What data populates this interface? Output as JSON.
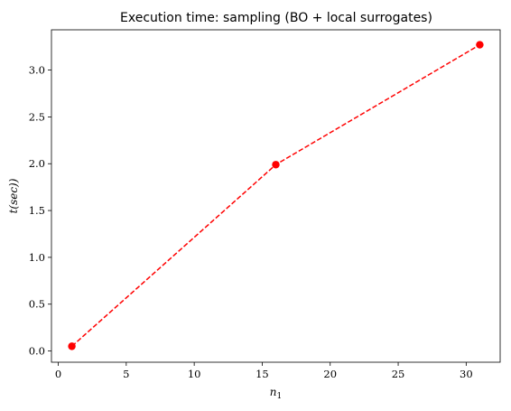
{
  "chart_data": {
    "type": "line",
    "title": "Execution time: sampling (BO + local surrogates)",
    "xlabel": "n",
    "xlabel_subscript": "1",
    "ylabel": "t(sec))",
    "xlim": [
      -0.5,
      32.5
    ],
    "ylim": [
      -0.12,
      3.43
    ],
    "xticks": [
      0,
      5,
      10,
      15,
      20,
      25,
      30
    ],
    "xtick_labels": [
      "0",
      "5",
      "10",
      "15",
      "20",
      "25",
      "30"
    ],
    "yticks": [
      0.0,
      0.5,
      1.0,
      1.5,
      2.0,
      2.5,
      3.0
    ],
    "ytick_labels": [
      "0.0",
      "0.5",
      "1.0",
      "1.5",
      "2.0",
      "2.5",
      "3.0"
    ],
    "grid": false,
    "series": [
      {
        "color": "#ff0000",
        "line_style": "dashed",
        "marker": "circle",
        "x": [
          1,
          16,
          31
        ],
        "y": [
          0.05,
          1.99,
          3.27
        ]
      }
    ]
  }
}
